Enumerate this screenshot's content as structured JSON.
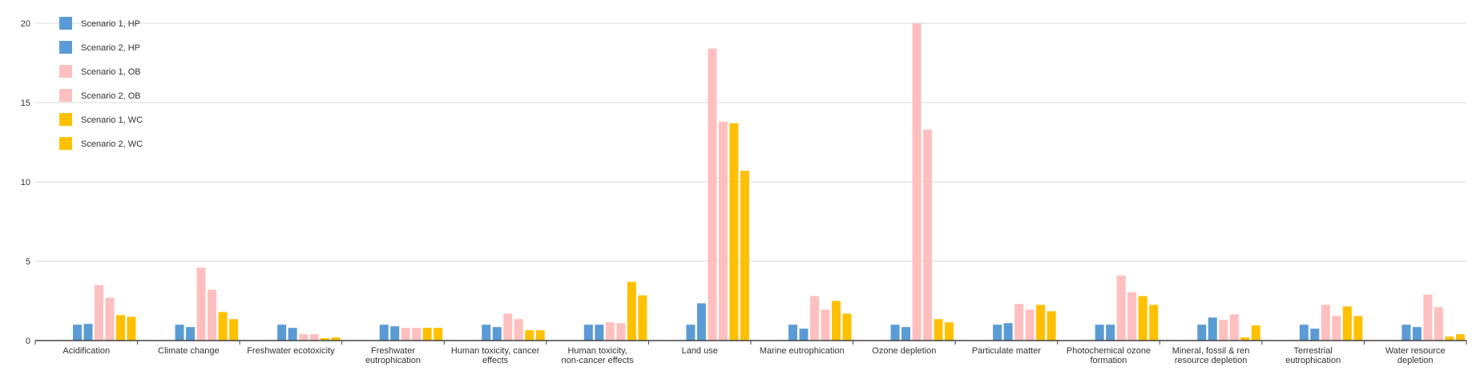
{
  "chart_data": {
    "type": "bar",
    "title": "",
    "xlabel": "",
    "ylabel": "",
    "ylim": [
      0,
      20
    ],
    "yticks": [
      "0",
      "5",
      "10",
      "15",
      "20"
    ],
    "grid": true,
    "legend_position": "top-left",
    "categories": [
      "Acidification",
      "Climate change",
      "Freshwater ecotoxicity",
      "Freshwater eutrophication",
      "Human toxicity, cancer effects",
      "Human toxicity, non-cancer effects",
      "Land use",
      "Marine eutrophication",
      "Ozone depletion",
      "Particulate matter",
      "Photochemical ozone formation",
      "Mineral, fossil & ren resource depletion",
      "Terrestrial eutrophication",
      "Water resource depletion"
    ],
    "category_label_lines": [
      [
        "Acidification"
      ],
      [
        "Climate change"
      ],
      [
        "Freshwater ecotoxicity"
      ],
      [
        "Freshwater",
        "eutrophication"
      ],
      [
        "Human toxicity, cancer",
        "effects"
      ],
      [
        "Human toxicity,",
        "non-cancer effects"
      ],
      [
        "Land use"
      ],
      [
        "Marine eutrophication"
      ],
      [
        "Ozone depletion"
      ],
      [
        "Particulate matter"
      ],
      [
        "Photochemical ozone",
        "formation"
      ],
      [
        "Mineral, fossil & ren",
        "resource depletion"
      ],
      [
        "Terrestrial",
        "eutrophication"
      ],
      [
        "Water resource",
        "depletion"
      ]
    ],
    "series": [
      {
        "name": "Scenario 1, HP",
        "color": "#5b9bd5",
        "values": [
          1.0,
          1.0,
          1.0,
          1.0,
          1.0,
          1.0,
          1.0,
          1.0,
          1.0,
          1.0,
          1.0,
          1.0,
          1.0,
          1.0
        ]
      },
      {
        "name": "Scenario 2, HP",
        "color": "#5b9bd5",
        "values": [
          1.05,
          0.85,
          0.8,
          0.9,
          0.85,
          1.0,
          2.35,
          0.75,
          0.85,
          1.1,
          1.0,
          1.45,
          0.75,
          0.85
        ]
      },
      {
        "name": "Scenario 1, OB",
        "color": "#ffbfbf",
        "values": [
          3.5,
          4.6,
          0.4,
          0.8,
          1.7,
          1.15,
          18.4,
          2.8,
          20.0,
          2.3,
          4.1,
          1.3,
          2.25,
          2.9
        ]
      },
      {
        "name": "Scenario 2, OB",
        "color": "#ffbfbf",
        "values": [
          2.7,
          3.2,
          0.4,
          0.8,
          1.35,
          1.1,
          13.8,
          1.95,
          13.3,
          1.95,
          3.05,
          1.65,
          1.55,
          2.1
        ]
      },
      {
        "name": "Scenario 1, WC",
        "color": "#ffc000",
        "values": [
          1.6,
          1.8,
          0.15,
          0.8,
          0.65,
          3.7,
          13.7,
          2.5,
          1.35,
          2.25,
          2.8,
          0.2,
          2.15,
          0.25
        ]
      },
      {
        "name": "Scenario 2, WC",
        "color": "#ffc000",
        "values": [
          1.5,
          1.35,
          0.2,
          0.8,
          0.65,
          2.85,
          10.7,
          1.7,
          1.15,
          1.85,
          2.25,
          0.95,
          1.55,
          0.4
        ]
      }
    ]
  }
}
